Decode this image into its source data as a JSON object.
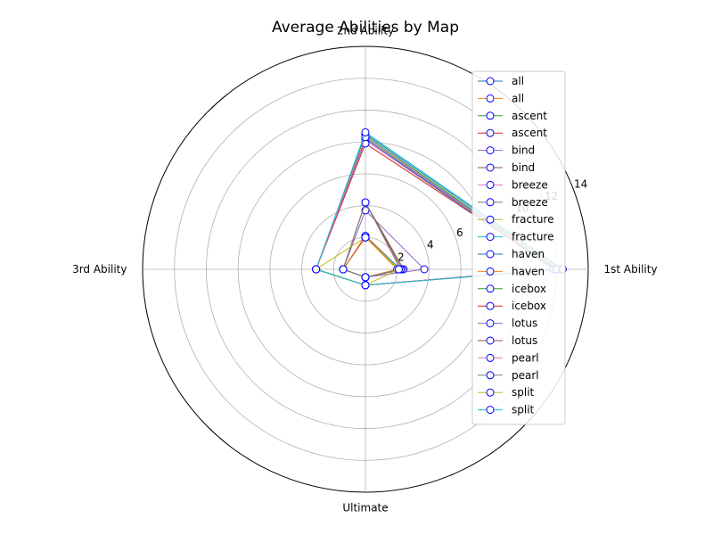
{
  "chart_data": {
    "type": "radar",
    "title": "Average Abilities by Map",
    "axes": [
      "1st Ability",
      "2nd Ability",
      "3rd Ability",
      "Ultimate"
    ],
    "rlim": [
      0,
      14
    ],
    "rticks": [
      2,
      4,
      6,
      8,
      10,
      12,
      14
    ],
    "grid": true,
    "legend_position": "upper right",
    "series": [
      {
        "name": "all",
        "color": "#1f77b4",
        "values": [
          12.3,
          8.5,
          3.1,
          1.0
        ]
      },
      {
        "name": "all",
        "color": "#ff7f0e",
        "values": [
          2.1,
          2.0,
          1.4,
          0.5
        ]
      },
      {
        "name": "ascent",
        "color": "#2ca02c",
        "values": [
          12.1,
          8.4,
          3.1,
          1.0
        ]
      },
      {
        "name": "ascent",
        "color": "#d62728",
        "values": [
          2.2,
          2.1,
          1.4,
          0.5
        ]
      },
      {
        "name": "bind",
        "color": "#9467bd",
        "values": [
          12.0,
          8.2,
          3.1,
          1.0
        ]
      },
      {
        "name": "bind",
        "color": "#8c564b",
        "values": [
          2.4,
          4.2,
          1.4,
          0.5
        ]
      },
      {
        "name": "breeze",
        "color": "#e377c2",
        "values": [
          11.9,
          8.1,
          3.1,
          1.0
        ]
      },
      {
        "name": "breeze",
        "color": "#7f7f7f",
        "values": [
          2.1,
          2.0,
          1.4,
          0.5
        ]
      },
      {
        "name": "fracture",
        "color": "#bcbd22",
        "values": [
          12.0,
          8.3,
          3.1,
          1.0
        ]
      },
      {
        "name": "fracture",
        "color": "#17becf",
        "values": [
          2.2,
          2.0,
          1.4,
          0.5
        ]
      },
      {
        "name": "haven",
        "color": "#1f77b4",
        "values": [
          11.8,
          8.2,
          3.1,
          1.0
        ]
      },
      {
        "name": "haven",
        "color": "#ff7f0e",
        "values": [
          2.0,
          2.0,
          1.4,
          0.5
        ]
      },
      {
        "name": "icebox",
        "color": "#2ca02c",
        "values": [
          12.1,
          8.3,
          3.1,
          1.0
        ]
      },
      {
        "name": "icebox",
        "color": "#d62728",
        "values": [
          12.0,
          7.9,
          3.1,
          1.0
        ]
      },
      {
        "name": "lotus",
        "color": "#9467bd",
        "values": [
          3.7,
          3.7,
          1.4,
          0.5
        ]
      },
      {
        "name": "lotus",
        "color": "#8c564b",
        "values": [
          2.3,
          4.2,
          1.4,
          0.5
        ]
      },
      {
        "name": "pearl",
        "color": "#e377c2",
        "values": [
          12.0,
          8.3,
          3.1,
          1.0
        ]
      },
      {
        "name": "pearl",
        "color": "#7f7f7f",
        "values": [
          2.2,
          4.2,
          1.4,
          0.5
        ]
      },
      {
        "name": "split",
        "color": "#bcbd22",
        "values": [
          2.1,
          2.0,
          3.1,
          1.0
        ]
      },
      {
        "name": "split",
        "color": "#17becf",
        "values": [
          12.4,
          8.6,
          3.1,
          1.0
        ]
      }
    ]
  }
}
